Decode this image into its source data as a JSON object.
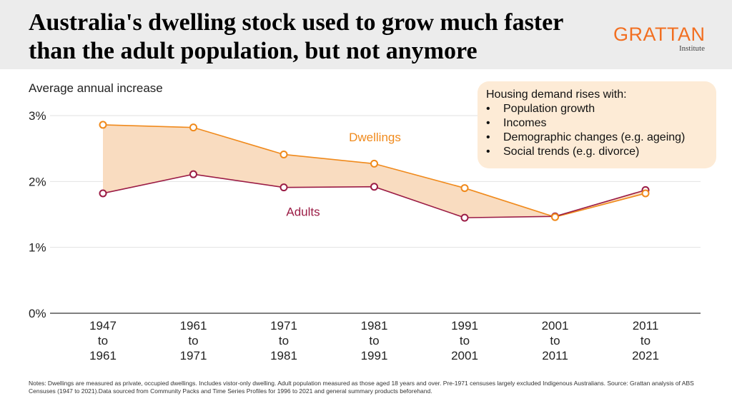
{
  "title": "Australia's dwelling stock used to grow much faster than the adult population, but not anymore",
  "logo": {
    "word": "GRATTAN",
    "sub": "Institute"
  },
  "callout": {
    "heading": "Housing demand rises with:",
    "items": [
      "Population growth",
      "Incomes",
      "Demographic changes (e.g. ageing)",
      "Social trends (e.g. divorce)"
    ]
  },
  "notes": "Notes: Dwellings are measured as private, occupied dwellings. Includes vistor-only dwelling. Adult population measured as those aged 18 years and over. Pre-1971 censuses largely excluded Indigenous Australians.  Source: Grattan analysis of ABS Censuses (1947 to 2021).Data sourced from Community Packs and Time Series Profiles for 1996 to 2021 and general summary products beforehand.",
  "colors": {
    "dwellings": "#f08a1c",
    "adults": "#9b1c45",
    "fill": "#f9dcc0",
    "callout_bg": "#fdebd6",
    "header_bg": "#ececec",
    "brand": "#f26f21"
  },
  "chart_data": {
    "type": "line",
    "ylabel": "Average annual increase",
    "ylim": [
      0,
      3
    ],
    "yticks": [
      0,
      1,
      2,
      3
    ],
    "ytick_labels": [
      "0%",
      "1%",
      "2%",
      "3%"
    ],
    "categories": [
      [
        "1947",
        "to",
        "1961"
      ],
      [
        "1961",
        "to",
        "1971"
      ],
      [
        "1971",
        "to",
        "1981"
      ],
      [
        "1981",
        "to",
        "1991"
      ],
      [
        "1991",
        "to",
        "2001"
      ],
      [
        "2001",
        "to",
        "2011"
      ],
      [
        "2011",
        "to",
        "2021"
      ]
    ],
    "series": [
      {
        "name": "Dwellings",
        "values": [
          2.86,
          2.82,
          2.41,
          2.27,
          1.9,
          1.46,
          1.82
        ]
      },
      {
        "name": "Adults",
        "values": [
          1.82,
          2.11,
          1.91,
          1.92,
          1.45,
          1.47,
          1.87
        ]
      }
    ],
    "grid": true,
    "legend": "inline labels"
  }
}
